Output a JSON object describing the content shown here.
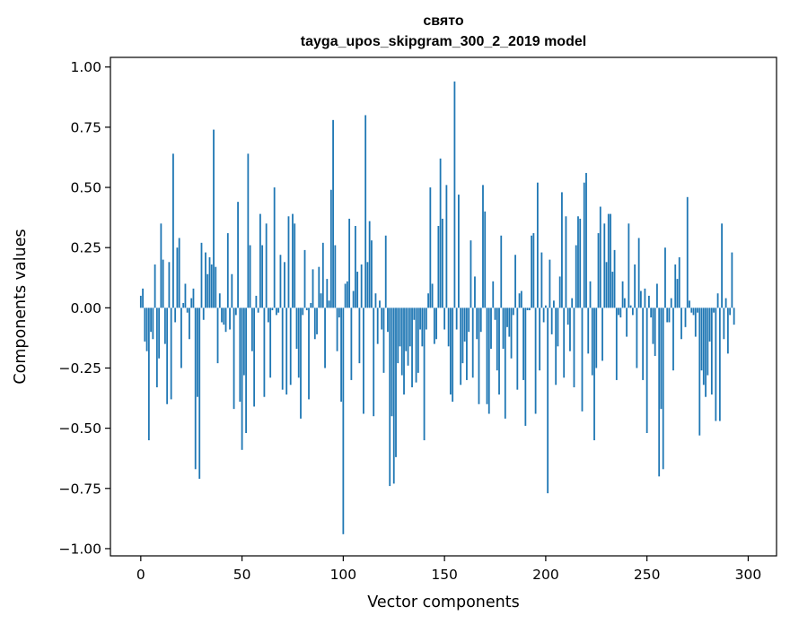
{
  "chart_data": {
    "type": "bar",
    "title": "свято",
    "subtitle": "tayga_upos_skipgram_300_2_2019 model",
    "xlabel": "Vector components",
    "ylabel": "Components values",
    "xlim": [
      -15.0,
      314.0
    ],
    "ylim": [
      -1.03,
      1.04
    ],
    "xticks": [
      0,
      50,
      100,
      150,
      200,
      250,
      300
    ],
    "yticks": [
      -1.0,
      -0.75,
      -0.5,
      -0.25,
      0.0,
      0.25,
      0.5,
      0.75,
      1.0
    ],
    "ytick_labels": [
      "−1.00",
      "−0.75",
      "−0.50",
      "−0.25",
      "0.00",
      "0.25",
      "0.50",
      "0.75",
      "1.00"
    ],
    "xtick_labels": [
      "0",
      "50",
      "100",
      "150",
      "200",
      "250",
      "300"
    ],
    "bar_color": "#1f77b4",
    "grid": false,
    "values": [
      0.05,
      0.08,
      -0.14,
      -0.18,
      -0.55,
      -0.1,
      -0.13,
      0.18,
      -0.33,
      -0.21,
      0.35,
      0.2,
      -0.15,
      -0.4,
      0.19,
      -0.38,
      0.64,
      -0.06,
      0.25,
      0.29,
      -0.25,
      0.02,
      0.1,
      -0.02,
      -0.13,
      0.04,
      0.08,
      -0.67,
      -0.37,
      -0.71,
      0.27,
      -0.05,
      0.23,
      0.14,
      0.21,
      0.18,
      0.74,
      0.17,
      -0.23,
      0.06,
      -0.06,
      -0.07,
      -0.1,
      0.31,
      -0.09,
      0.14,
      -0.42,
      -0.03,
      0.44,
      -0.39,
      -0.59,
      -0.28,
      -0.52,
      0.64,
      0.26,
      -0.18,
      -0.41,
      0.05,
      -0.02,
      0.39,
      0.26,
      -0.37,
      0.35,
      -0.06,
      -0.29,
      -0.01,
      0.5,
      -0.03,
      -0.02,
      0.22,
      -0.34,
      0.19,
      -0.36,
      0.38,
      -0.32,
      0.39,
      0.35,
      -0.17,
      -0.29,
      -0.46,
      -0.03,
      0.24,
      -0.01,
      -0.38,
      0.02,
      0.16,
      -0.13,
      -0.11,
      0.17,
      0.06,
      0.27,
      -0.25,
      0.12,
      0.03,
      0.49,
      0.78,
      0.26,
      -0.18,
      -0.04,
      -0.39,
      -0.94,
      0.1,
      0.11,
      0.37,
      -0.3,
      0.07,
      0.34,
      0.15,
      -0.23,
      0.18,
      -0.44,
      0.8,
      0.19,
      0.36,
      0.28,
      -0.45,
      0.06,
      -0.15,
      0.03,
      -0.09,
      -0.27,
      0.3,
      -0.1,
      -0.74,
      -0.45,
      -0.73,
      -0.62,
      -0.23,
      -0.16,
      -0.28,
      -0.36,
      -0.18,
      -0.24,
      -0.16,
      -0.33,
      -0.05,
      -0.31,
      -0.27,
      -0.09,
      -0.16,
      -0.55,
      -0.09,
      0.06,
      0.5,
      0.1,
      -0.15,
      -0.13,
      0.34,
      0.62,
      0.37,
      -0.09,
      0.51,
      -0.16,
      -0.36,
      -0.39,
      0.94,
      -0.09,
      0.47,
      -0.32,
      -0.23,
      -0.14,
      -0.3,
      -0.1,
      0.28,
      -0.29,
      0.13,
      -0.13,
      -0.4,
      -0.1,
      0.51,
      0.4,
      -0.4,
      -0.44,
      -0.17,
      0.11,
      -0.05,
      -0.26,
      -0.36,
      0.3,
      -0.17,
      -0.46,
      -0.08,
      -0.12,
      -0.21,
      -0.03,
      0.22,
      -0.34,
      0.06,
      0.07,
      -0.3,
      -0.49,
      -0.01,
      -0.01,
      0.3,
      0.31,
      -0.44,
      0.52,
      -0.26,
      0.23,
      -0.06,
      0.01,
      -0.77,
      0.2,
      -0.11,
      0.03,
      -0.32,
      -0.16,
      0.13,
      0.48,
      -0.29,
      0.38,
      -0.07,
      -0.18,
      0.04,
      -0.33,
      0.26,
      0.38,
      0.37,
      -0.43,
      0.52,
      0.56,
      -0.19,
      0.11,
      -0.28,
      -0.55,
      -0.25,
      0.31,
      0.42,
      -0.22,
      0.35,
      0.19,
      0.39,
      0.39,
      0.15,
      0.24,
      -0.3,
      -0.03,
      -0.04,
      0.11,
      0.04,
      -0.12,
      0.35,
      0.01,
      -0.03,
      0.18,
      -0.25,
      0.29,
      0.07,
      -0.3,
      0.08,
      -0.52,
      0.05,
      -0.04,
      -0.15,
      -0.2,
      0.1,
      -0.7,
      -0.42,
      -0.67,
      0.25,
      -0.06,
      -0.06,
      0.04,
      -0.26,
      0.18,
      0.12,
      0.21,
      -0.13,
      0.0,
      -0.08,
      0.46,
      0.03,
      -0.02,
      -0.03,
      -0.12,
      -0.02,
      -0.53,
      -0.26,
      -0.32,
      -0.37,
      -0.28,
      -0.14,
      -0.36,
      -0.02,
      -0.47,
      0.06,
      -0.47,
      0.35,
      -0.13,
      0.04,
      -0.19,
      -0.03,
      0.23,
      -0.07
    ]
  }
}
